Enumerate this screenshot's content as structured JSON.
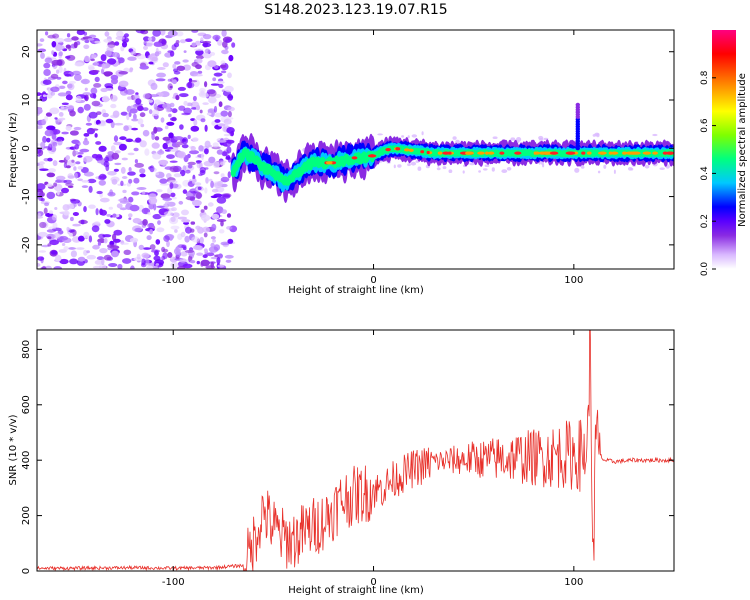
{
  "title": "S148.2023.123.19.07.R15",
  "chart_data": [
    {
      "type": "heatmap",
      "xlabel": "Height of straight line (km)",
      "ylabel": "Frequency (Hz)",
      "xlim": [
        -168,
        150
      ],
      "ylim": [
        -25,
        24.5
      ],
      "xticks": [
        -100,
        0,
        100
      ],
      "yticks": [
        -20,
        -10,
        0,
        10,
        20
      ],
      "colorbar": {
        "label": "Normalized spectral amplitude",
        "range": [
          0,
          1
        ],
        "ticks": [
          "0.0",
          "0.2",
          "0.4",
          "0.6",
          "0.8"
        ],
        "tick_values": [
          0.0,
          0.2,
          0.4,
          0.6,
          0.8
        ],
        "colormap": [
          "#ffffff",
          "#d9b8ff",
          "#8a2be2",
          "#5a00ff",
          "#0000ff",
          "#00c8ff",
          "#00ff7f",
          "#7fff00",
          "#ffff00",
          "#ff8000",
          "#ff0000",
          "#ff0080"
        ]
      },
      "noise_region_x": [
        -168,
        -70
      ],
      "line_trace": {
        "x": [
          -70,
          -65,
          -60,
          -55,
          -50,
          -45,
          -40,
          -35,
          -30,
          -25,
          -20,
          -15,
          -10,
          -5,
          0,
          5,
          10,
          20,
          30,
          40,
          50,
          60,
          70,
          80,
          90,
          100,
          105,
          110,
          120,
          130,
          140,
          150
        ],
        "y": [
          -5,
          -1,
          -2,
          -4,
          -5,
          -7,
          -6,
          -4,
          -3,
          -3,
          -3,
          -2.5,
          -2,
          -2,
          -1.5,
          -0.5,
          0,
          -0.5,
          -1,
          -1,
          -1,
          -1,
          -1,
          -1,
          -1,
          -1,
          -1,
          -1,
          -1,
          -1,
          -1,
          -1
        ]
      },
      "spike": {
        "x": 102,
        "y": [
          0,
          9
        ]
      }
    },
    {
      "type": "line",
      "xlabel": "Height of straight line (km)",
      "ylabel": "SNR (10 * v/v)",
      "xlim": [
        -168,
        150
      ],
      "ylim": [
        0,
        870
      ],
      "xticks": [
        -100,
        0,
        100
      ],
      "yticks": [
        0,
        200,
        400,
        600,
        800
      ],
      "color": "#e8302a",
      "series": [
        {
          "x": [
            -168,
            -150,
            -120,
            -100,
            -80,
            -65,
            -62,
            -58,
            -55,
            -52,
            -48,
            -45,
            -42,
            -38,
            -35,
            -30,
            -25,
            -20,
            -15,
            -10,
            -5,
            0,
            5,
            10,
            15,
            20,
            25,
            30,
            40,
            50,
            60,
            70,
            80,
            90,
            95,
            100,
            105,
            107,
            108,
            109,
            110,
            111,
            112,
            115,
            120,
            130,
            140,
            150
          ],
          "y": [
            10,
            10,
            12,
            10,
            12,
            20,
            60,
            150,
            220,
            180,
            140,
            120,
            110,
            120,
            140,
            160,
            180,
            220,
            260,
            270,
            280,
            290,
            300,
            330,
            350,
            370,
            380,
            395,
            400,
            405,
            405,
            410,
            410,
            415,
            420,
            420,
            420,
            480,
            860,
            300,
            100,
            500,
            430,
            400,
            395,
            400,
            400,
            400
          ]
        }
      ]
    }
  ]
}
